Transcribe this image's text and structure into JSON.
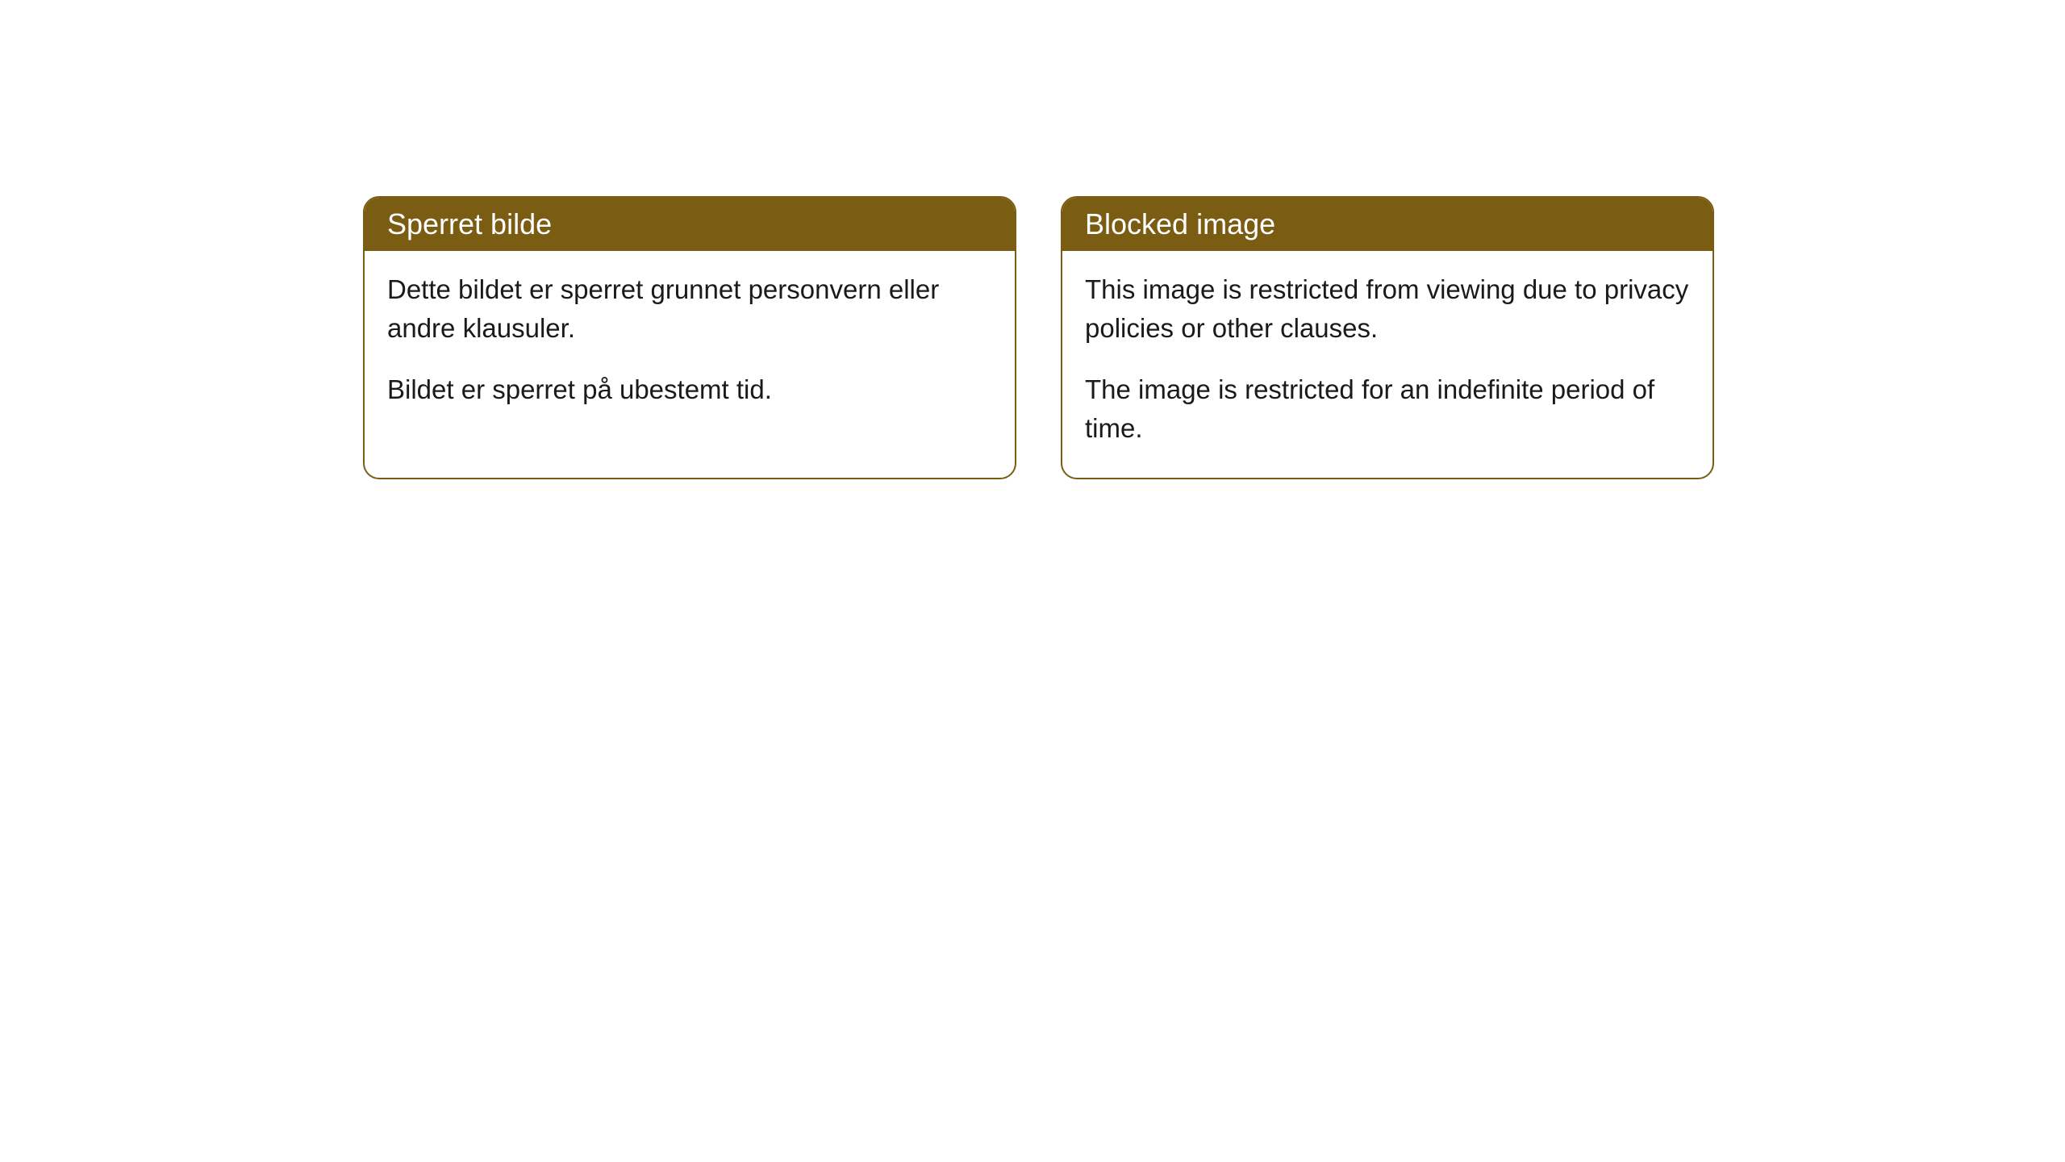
{
  "cards": [
    {
      "title": "Sperret bilde",
      "paragraph1": "Dette bildet er sperret grunnet personvern eller andre klausuler.",
      "paragraph2": "Bildet er sperret på ubestemt tid."
    },
    {
      "title": "Blocked image",
      "paragraph1": "This image is restricted from viewing due to privacy policies or other clauses.",
      "paragraph2": "The image is restricted for an indefinite period of time."
    }
  ],
  "style": {
    "header_bg": "#7a5c13",
    "header_text": "#ffffff",
    "border_color": "#7a5c13",
    "body_bg": "#ffffff",
    "body_text": "#1a1a1a",
    "border_radius": 20,
    "title_fontsize": 36,
    "body_fontsize": 33
  }
}
